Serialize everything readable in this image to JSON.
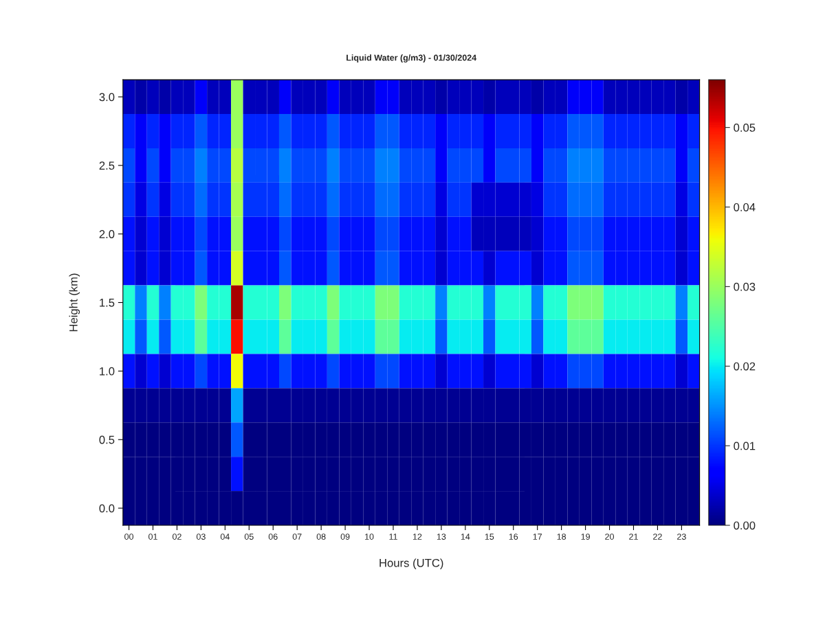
{
  "chart_data": {
    "type": "heatmap",
    "title": "Liquid Water (g/m3) - 01/30/2024",
    "xlabel": "Hours (UTC)",
    "ylabel": "Height (km)",
    "categories": [
      "00",
      null,
      "01",
      null,
      "02",
      null,
      "03",
      null,
      "04",
      null,
      "05",
      null,
      "06",
      null,
      "07",
      null,
      "08",
      null,
      "09",
      null,
      "10",
      null,
      "11",
      null,
      "12",
      null,
      "13",
      null,
      "14",
      null,
      "15",
      null,
      "16",
      null,
      "17",
      null,
      "18",
      null,
      "19",
      null,
      "20",
      null,
      "21",
      null,
      "22",
      null,
      "23",
      null
    ],
    "y_categories": [
      "3.0",
      null,
      "2.5",
      null,
      "2.0",
      null,
      "1.5",
      null,
      "1.0",
      null,
      "0.5",
      null,
      "0.0"
    ],
    "cells": [
      [
        0.003,
        0.002,
        0.003,
        0.002,
        0.003,
        0.003,
        0.006,
        0.003,
        0.003,
        0.03,
        0.003,
        0.003,
        0.003,
        0.006,
        0.003,
        0.003,
        0.003,
        0.006,
        0.003,
        0.003,
        0.003,
        0.006,
        0.006,
        0.003,
        0.003,
        0.003,
        0.002,
        0.003,
        0.003,
        0.003,
        0.002,
        0.003,
        0.003,
        0.003,
        0.002,
        0.003,
        0.003,
        0.006,
        0.006,
        0.006,
        0.003,
        0.003,
        0.003,
        0.003,
        0.003,
        0.003,
        0.002,
        0.003
      ],
      [
        0.009,
        0.006,
        0.009,
        0.006,
        0.009,
        0.009,
        0.012,
        0.009,
        0.009,
        0.03,
        0.009,
        0.009,
        0.009,
        0.012,
        0.009,
        0.009,
        0.009,
        0.012,
        0.009,
        0.009,
        0.009,
        0.012,
        0.012,
        0.009,
        0.009,
        0.009,
        0.006,
        0.009,
        0.009,
        0.009,
        0.006,
        0.009,
        0.009,
        0.009,
        0.006,
        0.009,
        0.009,
        0.012,
        0.012,
        0.012,
        0.009,
        0.009,
        0.009,
        0.009,
        0.009,
        0.009,
        0.006,
        0.009
      ],
      [
        0.011,
        0.006,
        0.011,
        0.006,
        0.011,
        0.011,
        0.014,
        0.011,
        0.011,
        0.032,
        0.011,
        0.011,
        0.011,
        0.014,
        0.011,
        0.011,
        0.011,
        0.014,
        0.011,
        0.011,
        0.011,
        0.014,
        0.014,
        0.011,
        0.011,
        0.011,
        0.006,
        0.011,
        0.011,
        0.011,
        0.006,
        0.011,
        0.011,
        0.011,
        0.006,
        0.011,
        0.011,
        0.014,
        0.014,
        0.014,
        0.011,
        0.011,
        0.011,
        0.011,
        0.011,
        0.011,
        0.006,
        0.011
      ],
      [
        0.01,
        0.005,
        0.01,
        0.005,
        0.01,
        0.01,
        0.013,
        0.01,
        0.01,
        0.031,
        0.01,
        0.01,
        0.01,
        0.013,
        0.01,
        0.01,
        0.01,
        0.013,
        0.01,
        0.01,
        0.01,
        0.013,
        0.013,
        0.01,
        0.01,
        0.01,
        0.005,
        0.01,
        0.01,
        0.004,
        0.004,
        0.004,
        0.004,
        0.004,
        0.005,
        0.01,
        0.01,
        0.013,
        0.013,
        0.013,
        0.01,
        0.01,
        0.01,
        0.01,
        0.01,
        0.01,
        0.005,
        0.01
      ],
      [
        0.008,
        0.004,
        0.008,
        0.004,
        0.008,
        0.008,
        0.011,
        0.008,
        0.008,
        0.03,
        0.008,
        0.008,
        0.008,
        0.011,
        0.008,
        0.008,
        0.008,
        0.011,
        0.008,
        0.008,
        0.008,
        0.011,
        0.011,
        0.008,
        0.008,
        0.008,
        0.004,
        0.008,
        0.008,
        0.003,
        0.003,
        0.003,
        0.003,
        0.003,
        0.004,
        0.008,
        0.008,
        0.011,
        0.011,
        0.011,
        0.008,
        0.008,
        0.008,
        0.008,
        0.008,
        0.008,
        0.004,
        0.008
      ],
      [
        0.008,
        0.004,
        0.008,
        0.004,
        0.008,
        0.008,
        0.012,
        0.008,
        0.008,
        0.034,
        0.008,
        0.008,
        0.008,
        0.012,
        0.008,
        0.008,
        0.008,
        0.012,
        0.008,
        0.008,
        0.008,
        0.012,
        0.012,
        0.008,
        0.008,
        0.008,
        0.004,
        0.008,
        0.008,
        0.008,
        0.004,
        0.008,
        0.008,
        0.008,
        0.004,
        0.008,
        0.008,
        0.012,
        0.012,
        0.012,
        0.008,
        0.008,
        0.008,
        0.008,
        0.008,
        0.008,
        0.004,
        0.008
      ],
      [
        0.022,
        0.014,
        0.022,
        0.014,
        0.022,
        0.022,
        0.028,
        0.022,
        0.022,
        0.054,
        0.022,
        0.022,
        0.022,
        0.028,
        0.022,
        0.022,
        0.022,
        0.028,
        0.022,
        0.022,
        0.022,
        0.028,
        0.028,
        0.022,
        0.022,
        0.022,
        0.014,
        0.022,
        0.022,
        0.022,
        0.014,
        0.022,
        0.022,
        0.022,
        0.014,
        0.022,
        0.022,
        0.028,
        0.028,
        0.028,
        0.022,
        0.022,
        0.022,
        0.022,
        0.022,
        0.022,
        0.014,
        0.022
      ],
      [
        0.02,
        0.012,
        0.02,
        0.012,
        0.02,
        0.02,
        0.026,
        0.02,
        0.02,
        0.05,
        0.02,
        0.02,
        0.02,
        0.026,
        0.02,
        0.02,
        0.02,
        0.026,
        0.02,
        0.02,
        0.02,
        0.026,
        0.026,
        0.02,
        0.02,
        0.02,
        0.012,
        0.02,
        0.02,
        0.02,
        0.012,
        0.02,
        0.02,
        0.02,
        0.012,
        0.02,
        0.02,
        0.026,
        0.026,
        0.026,
        0.02,
        0.02,
        0.02,
        0.02,
        0.02,
        0.02,
        0.012,
        0.02
      ],
      [
        0.008,
        0.004,
        0.008,
        0.004,
        0.008,
        0.008,
        0.011,
        0.008,
        0.008,
        0.036,
        0.008,
        0.008,
        0.008,
        0.011,
        0.008,
        0.008,
        0.008,
        0.011,
        0.008,
        0.008,
        0.008,
        0.011,
        0.011,
        0.008,
        0.008,
        0.008,
        0.004,
        0.008,
        0.008,
        0.008,
        0.004,
        0.008,
        0.008,
        0.008,
        0.004,
        0.008,
        0.008,
        0.011,
        0.011,
        0.011,
        0.008,
        0.008,
        0.008,
        0.008,
        0.008,
        0.008,
        0.004,
        0.008
      ],
      [
        0.001,
        0.001,
        0.001,
        0.001,
        0.001,
        0.001,
        0.001,
        0.001,
        0.001,
        0.016,
        0.001,
        0.001,
        0.001,
        0.001,
        0.001,
        0.001,
        0.001,
        0.001,
        0.001,
        0.001,
        0.001,
        0.001,
        0.001,
        0.001,
        0.001,
        0.001,
        0.001,
        0.001,
        0.001,
        0.001,
        0.001,
        0.001,
        0.001,
        0.001,
        0.001,
        0.001,
        0.001,
        0.001,
        0.001,
        0.001,
        0.001,
        0.001,
        0.001,
        0.001,
        0.001,
        0.001,
        0.001,
        0.001
      ],
      [
        0,
        0,
        0,
        0,
        0,
        0,
        0,
        0,
        0,
        0.012,
        0,
        0,
        0,
        0,
        0,
        0,
        0,
        0,
        0,
        0,
        0,
        0,
        0,
        0,
        0,
        0,
        0,
        0,
        0,
        0,
        0,
        0,
        0,
        0,
        0,
        0,
        0,
        0,
        0,
        0,
        0,
        0,
        0,
        0,
        0,
        0,
        0,
        0
      ],
      [
        0,
        0,
        0,
        0,
        0,
        0,
        0,
        0,
        0,
        0.008,
        0,
        0,
        0,
        0,
        0,
        0,
        0,
        0,
        0,
        0,
        0,
        0,
        0,
        0,
        0,
        0,
        0,
        0,
        0,
        0,
        0,
        0,
        0,
        0,
        0,
        0,
        0,
        0,
        0,
        0,
        0,
        0,
        0,
        0,
        0,
        0,
        0,
        0
      ],
      [
        0,
        0,
        0,
        0,
        0,
        0,
        0,
        0,
        0,
        0,
        0,
        0,
        0,
        0,
        0,
        0,
        0,
        0,
        0,
        0,
        0,
        0,
        0,
        0,
        0,
        0,
        0,
        0,
        0,
        0,
        0,
        0,
        0,
        0,
        0,
        0,
        0,
        0,
        0,
        0,
        0,
        0,
        0,
        0,
        0,
        0,
        0,
        0
      ]
    ],
    "clim": [
      0,
      0.056
    ],
    "cticks": [
      {
        "value": 0,
        "label": "0.00"
      },
      {
        "value": 0.01,
        "label": "0.01"
      },
      {
        "value": 0.02,
        "label": "0.02"
      },
      {
        "value": 0.03,
        "label": "0.03"
      },
      {
        "value": 0.04,
        "label": "0.04"
      },
      {
        "value": 0.05,
        "label": "0.05"
      }
    ]
  }
}
